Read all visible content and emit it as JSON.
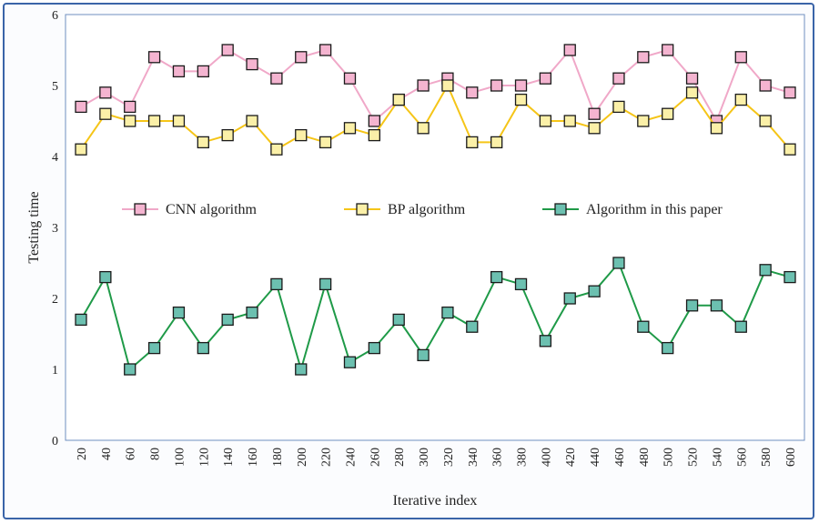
{
  "chart_data": {
    "type": "line",
    "title": "",
    "xlabel": "Iterative index",
    "ylabel": "Testing time",
    "x": [
      20,
      40,
      60,
      80,
      100,
      120,
      140,
      160,
      180,
      200,
      220,
      240,
      260,
      280,
      300,
      320,
      340,
      360,
      380,
      400,
      420,
      440,
      460,
      480,
      500,
      520,
      540,
      560,
      580,
      600
    ],
    "ylim": [
      0,
      6
    ],
    "yticks": [
      0,
      1,
      2,
      3,
      4,
      5,
      6
    ],
    "grid": false,
    "legend_position": "middle",
    "series": [
      {
        "name": "CNN algorithm",
        "line_color": "#f0a8c8",
        "marker_fill": "#f4b4d0",
        "values": [
          4.7,
          4.9,
          4.7,
          5.4,
          5.2,
          5.2,
          5.5,
          5.3,
          5.1,
          5.4,
          5.5,
          5.1,
          4.5,
          4.8,
          5.0,
          5.1,
          4.9,
          5.0,
          5.0,
          5.1,
          5.5,
          4.6,
          5.1,
          5.4,
          5.5,
          5.1,
          4.5,
          5.4,
          5.0,
          4.9
        ]
      },
      {
        "name": "BP algorithm",
        "line_color": "#f5c518",
        "marker_fill": "#fbf0a8",
        "values": [
          4.1,
          4.6,
          4.5,
          4.5,
          4.5,
          4.2,
          4.3,
          4.5,
          4.1,
          4.3,
          4.2,
          4.4,
          4.3,
          4.8,
          4.4,
          5.0,
          4.2,
          4.2,
          4.8,
          4.5,
          4.5,
          4.4,
          4.7,
          4.5,
          4.6,
          4.9,
          4.4,
          4.8,
          4.5,
          4.1
        ]
      },
      {
        "name": "Algorithm in this paper",
        "line_color": "#1f9a48",
        "marker_fill": "#6cc0b0",
        "values": [
          1.7,
          2.3,
          1.0,
          1.3,
          1.8,
          1.3,
          1.7,
          1.8,
          2.2,
          1.0,
          2.2,
          1.1,
          1.3,
          1.7,
          1.2,
          1.8,
          1.6,
          2.3,
          2.2,
          1.4,
          2.0,
          2.1,
          2.5,
          1.6,
          1.3,
          1.9,
          1.9,
          1.6,
          2.4,
          2.3
        ]
      }
    ]
  }
}
